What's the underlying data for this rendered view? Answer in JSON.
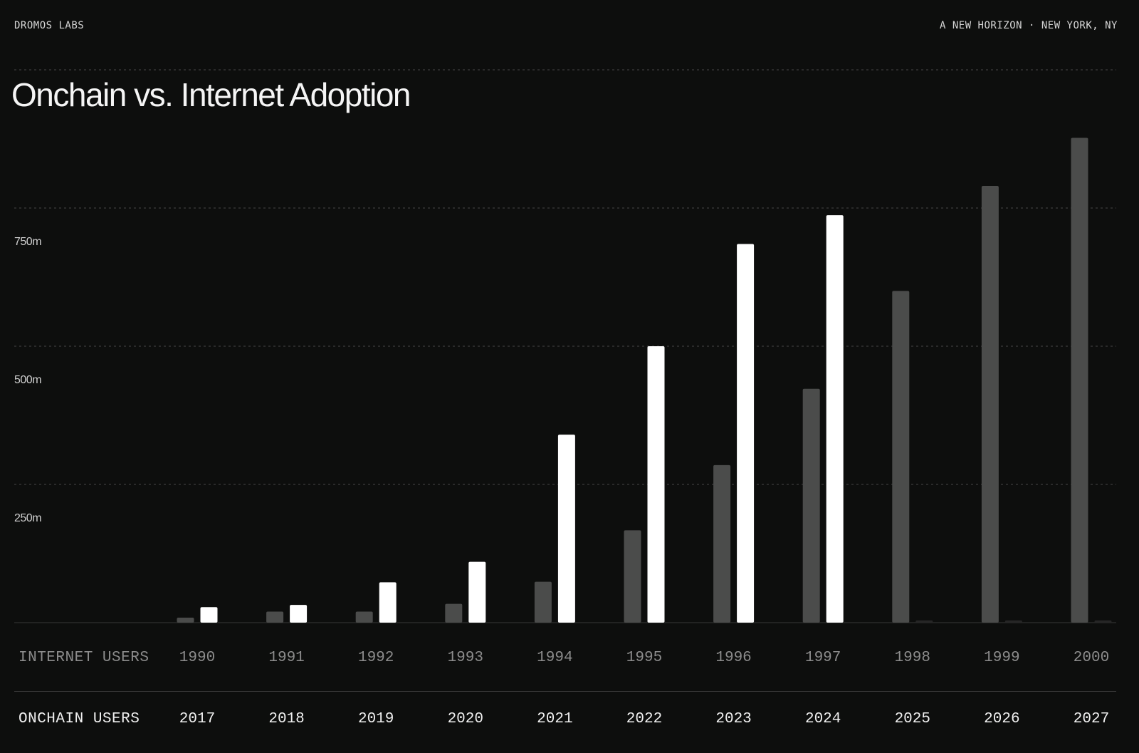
{
  "header": {
    "brand": "DROMOS LABS",
    "tagline": "A NEW HORIZON · NEW YORK, NY"
  },
  "colors": {
    "background": "#0d0e0d",
    "internet_bar": "#4b4c4b",
    "onchain_bar": "#ffffff",
    "gridline": "#3c3c3c",
    "axis_text": "#d0d0d0"
  },
  "chart_data": {
    "type": "bar",
    "title": "Onchain vs. Internet Adoption",
    "ylabel": "",
    "xlabel": "",
    "ylim": [
      0,
      1000
    ],
    "y_ticks": [
      250,
      500,
      750
    ],
    "y_tick_labels": [
      "250m",
      "500m",
      "750m"
    ],
    "grid": true,
    "row_labels": {
      "internet": "INTERNET USERS",
      "onchain": "ONCHAIN USERS"
    },
    "internet_years": [
      "1990",
      "1991",
      "1992",
      "1993",
      "1994",
      "1995",
      "1996",
      "1997",
      "1998",
      "1999",
      "2000"
    ],
    "onchain_years": [
      "2017",
      "2018",
      "2019",
      "2020",
      "2021",
      "2022",
      "2023",
      "2024",
      "2025",
      "2026",
      "2027"
    ],
    "series": [
      {
        "name": "Internet Users",
        "values": [
          9,
          20,
          20,
          34,
          74,
          167,
          285,
          423,
          600,
          790,
          877
        ]
      },
      {
        "name": "Onchain Users",
        "values": [
          28,
          32,
          73,
          110,
          340,
          500,
          685,
          737,
          4,
          4,
          4
        ]
      }
    ]
  }
}
